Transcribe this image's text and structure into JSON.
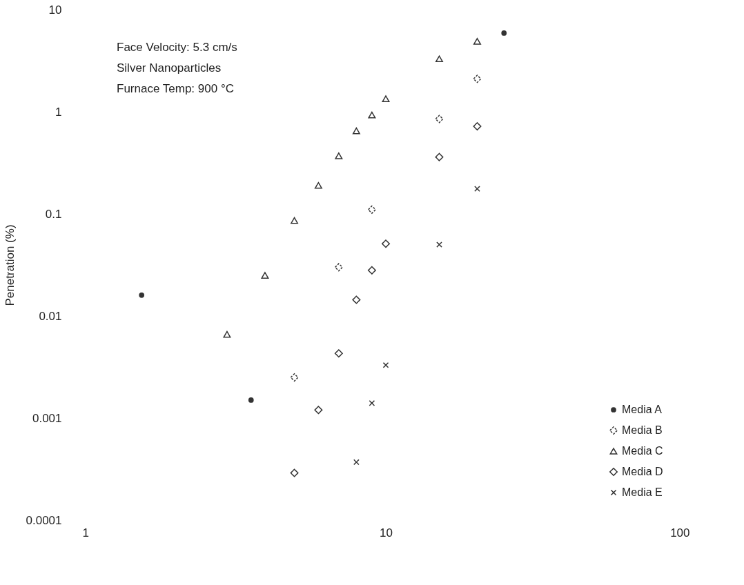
{
  "chart_data": {
    "type": "scatter",
    "ylabel": "Penetration (%)",
    "annotations": [
      "Face Velocity: 5.3 cm/s",
      "Silver Nanoparticles",
      "Furnace Temp: 900 °C"
    ],
    "log": "xy",
    "grid": false,
    "legend": "bottom right",
    "xlim": [
      1,
      100
    ],
    "xticks": [
      1,
      10,
      100
    ],
    "ylim": [
      0.0001,
      10
    ],
    "yticks": [
      0.0001,
      0.001,
      0.01,
      0.1,
      1,
      10
    ],
    "series": [
      {
        "name": "Media A",
        "color": "#333333",
        "marker": "circle",
        "x": [
          1.57,
          3.6,
          24.5
        ],
        "values": [
          0.016,
          0.0015,
          5.9
        ]
      },
      {
        "name": "Media B",
        "color": "#333333",
        "marker": "diamond",
        "line_style": "dotted",
        "x": [
          5,
          7,
          9,
          15,
          20
        ],
        "values": [
          0.0025,
          0.03,
          0.11,
          0.85,
          2.1
        ]
      },
      {
        "name": "Media C",
        "color": "#333333",
        "marker": "triangle",
        "x": [
          3,
          4,
          5,
          6,
          7,
          8,
          9,
          10,
          15,
          20
        ],
        "values": [
          0.0066,
          0.025,
          0.086,
          0.19,
          0.37,
          0.65,
          0.93,
          1.34,
          3.3,
          4.9
        ]
      },
      {
        "name": "Media D",
        "color": "#333333",
        "marker": "diamond",
        "x": [
          5,
          6,
          7,
          8,
          9,
          10,
          15,
          20
        ],
        "values": [
          0.00029,
          0.0012,
          0.0043,
          0.0144,
          0.028,
          0.051,
          0.36,
          0.72
        ]
      },
      {
        "name": "Media E",
        "color": "#333333",
        "marker": "cross",
        "x": [
          8,
          9,
          10,
          15,
          20
        ],
        "values": [
          0.00037,
          0.0014,
          0.0033,
          0.05,
          0.176
        ]
      }
    ]
  }
}
